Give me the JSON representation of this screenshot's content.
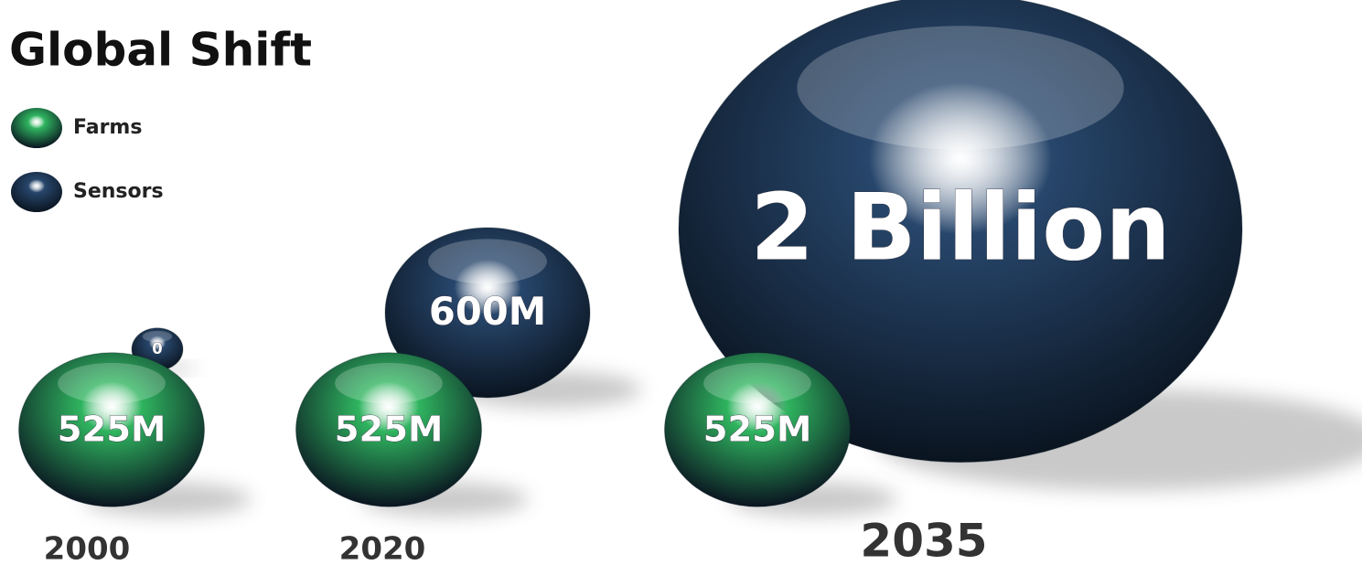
{
  "chart_data": {
    "type": "bubble",
    "title": "Global Shift",
    "categories": [
      "2000",
      "2020",
      "2035"
    ],
    "series": [
      {
        "name": "Farms",
        "color": "#2fb45f",
        "values": [
          525000000,
          525000000,
          525000000
        ],
        "value_labels": [
          "525M",
          "525M",
          "525M"
        ]
      },
      {
        "name": "Sensors",
        "color": "#27466b",
        "values": [
          0,
          600000000,
          2000000000
        ],
        "value_labels": [
          "0",
          "600M",
          "2 Billion"
        ]
      }
    ]
  }
}
